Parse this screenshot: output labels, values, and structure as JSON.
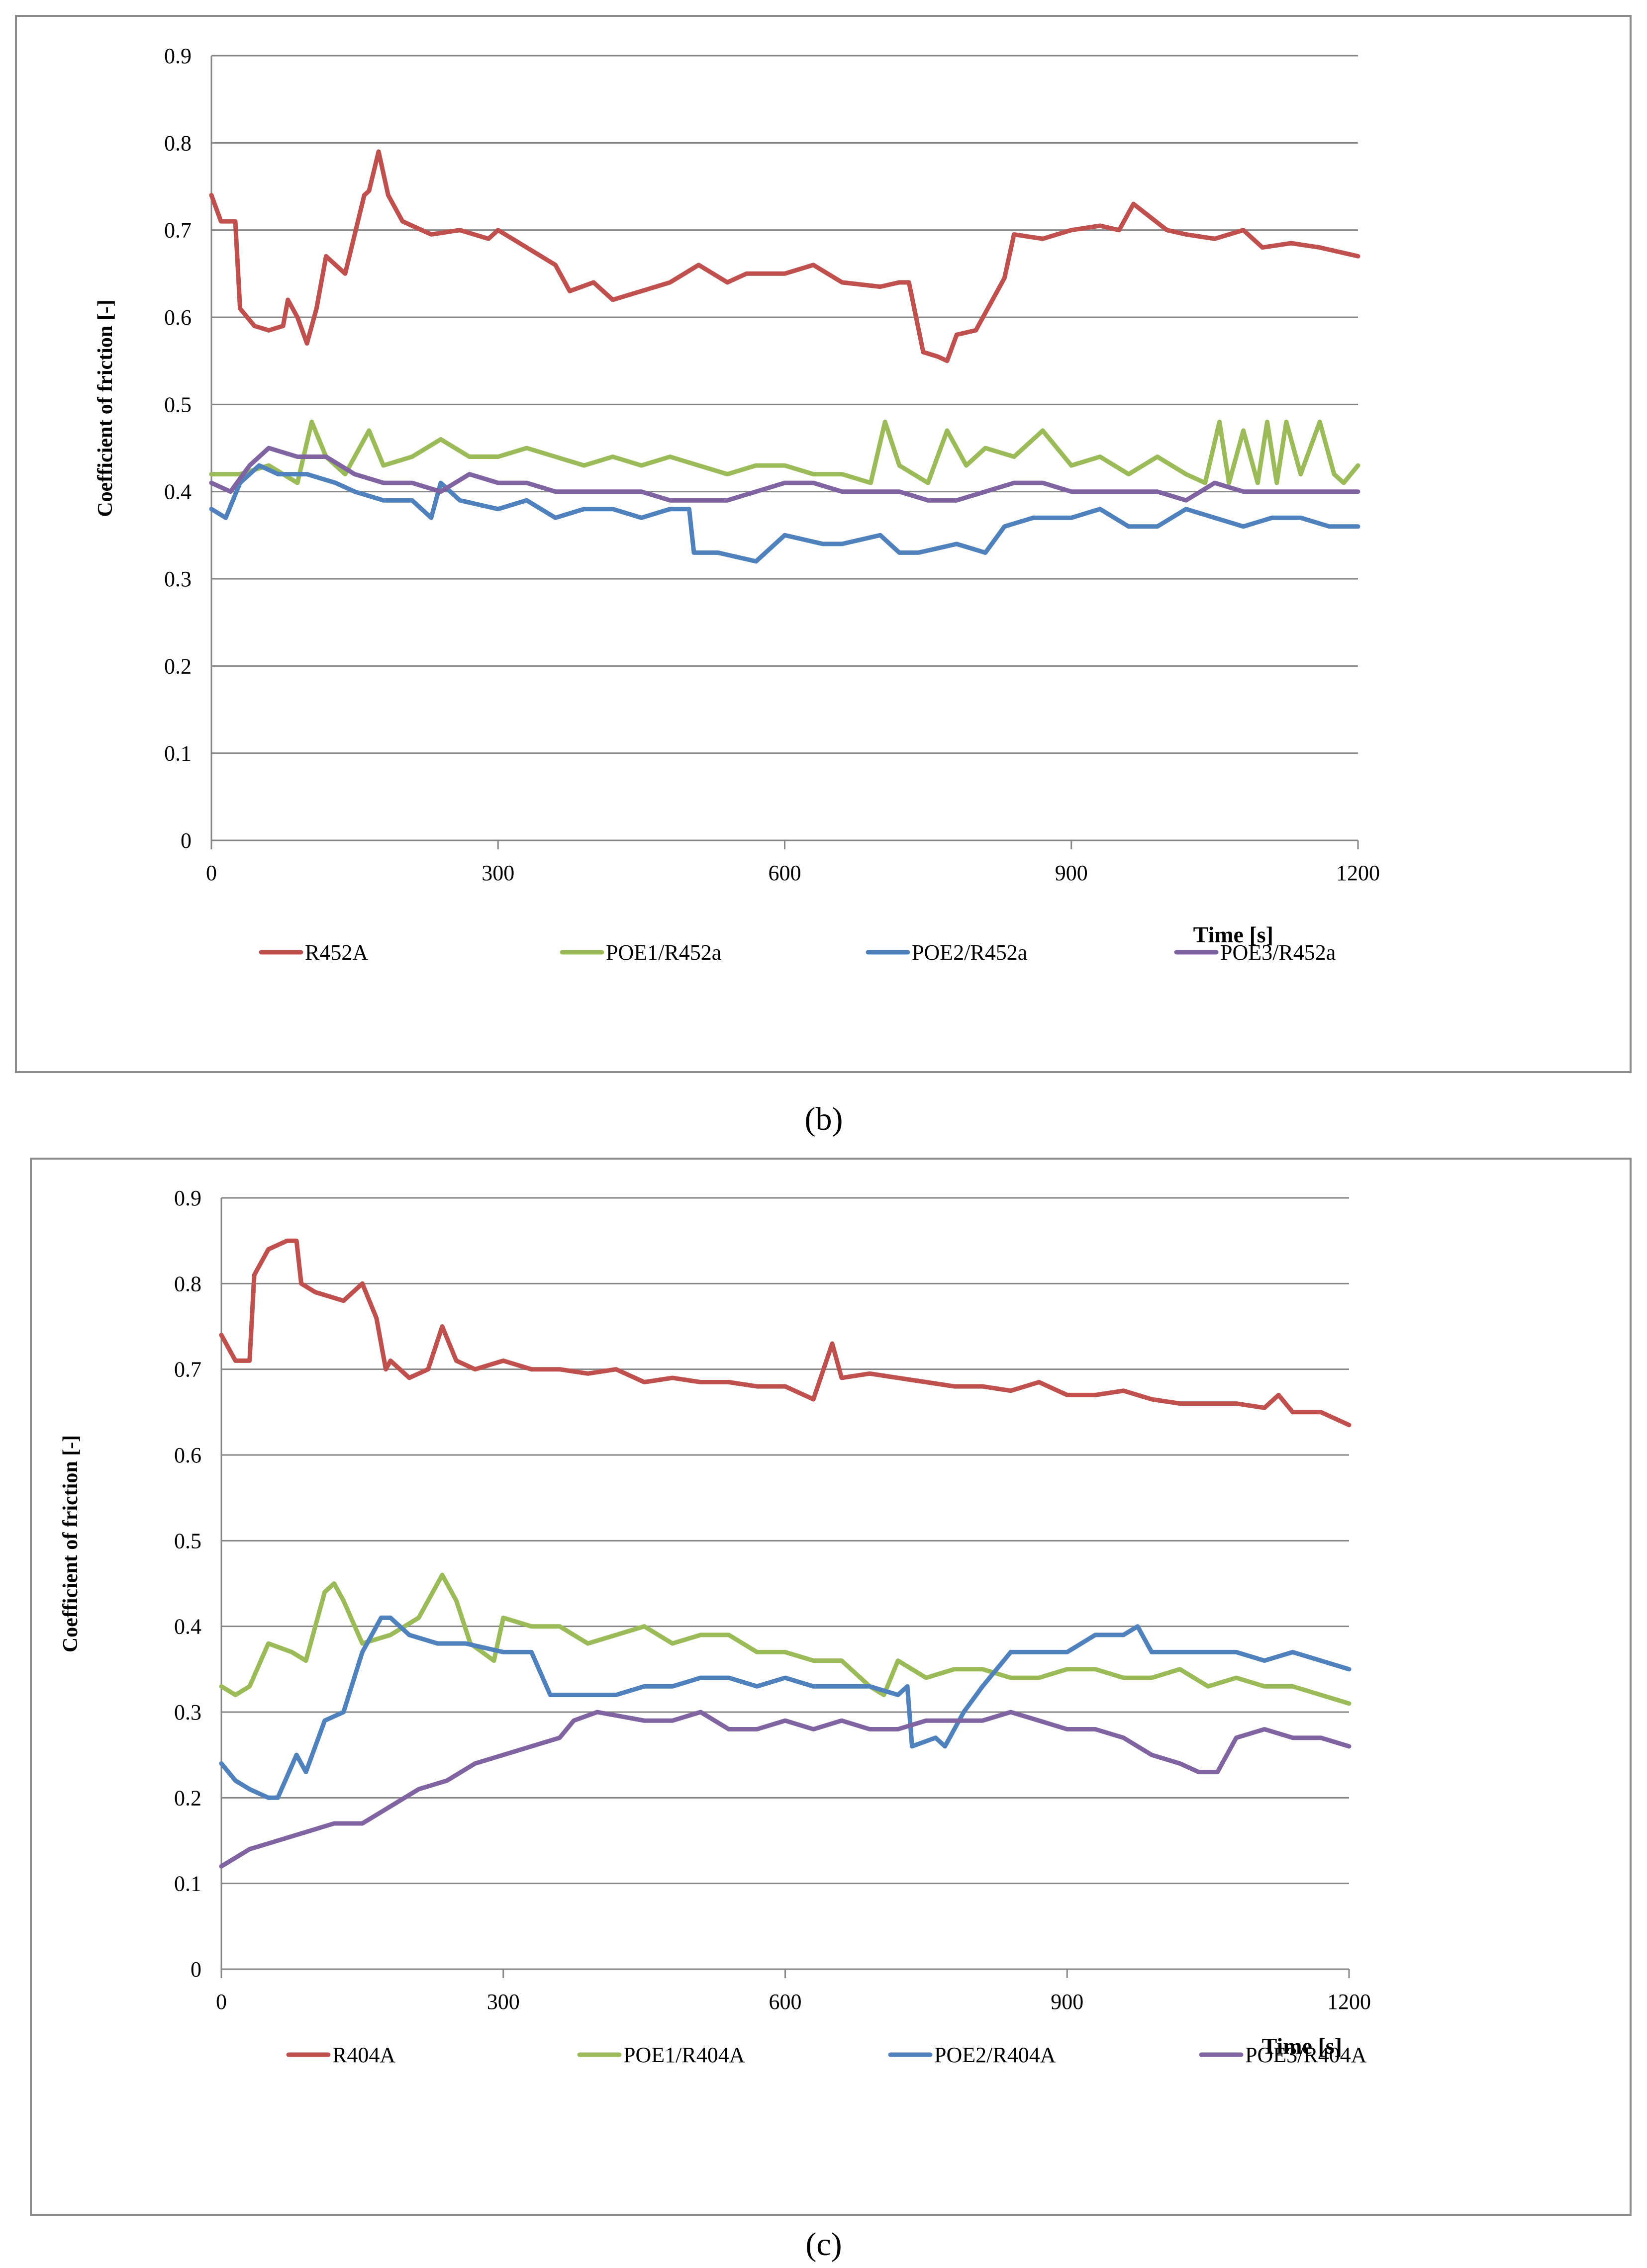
{
  "chart_data": [
    {
      "id": "b",
      "type": "line",
      "caption": "(b)",
      "xlabel": "Time [s]",
      "ylabel": "Coefficient of friction [-]",
      "xlim": [
        0,
        1200
      ],
      "ylim": [
        0,
        0.9
      ],
      "xticks": [
        0,
        300,
        600,
        900,
        1200
      ],
      "yticks": [
        0,
        0.1,
        0.2,
        0.3,
        0.4,
        0.5,
        0.6,
        0.7,
        0.8,
        0.9
      ],
      "grid": true,
      "legend_position": "bottom",
      "series": [
        {
          "name": "R452A",
          "color": "#c0504d",
          "x": [
            0,
            10,
            25,
            30,
            45,
            60,
            75,
            80,
            90,
            100,
            110,
            120,
            140,
            160,
            165,
            175,
            185,
            200,
            230,
            260,
            290,
            300,
            330,
            360,
            375,
            400,
            420,
            450,
            480,
            510,
            540,
            560,
            600,
            630,
            660,
            700,
            720,
            730,
            745,
            760,
            770,
            780,
            800,
            830,
            840,
            870,
            900,
            930,
            950,
            965,
            1000,
            1020,
            1050,
            1080,
            1100,
            1130,
            1160,
            1200
          ],
          "y": [
            0.74,
            0.71,
            0.71,
            0.61,
            0.59,
            0.585,
            0.59,
            0.62,
            0.6,
            0.57,
            0.61,
            0.67,
            0.65,
            0.74,
            0.745,
            0.79,
            0.74,
            0.71,
            0.695,
            0.7,
            0.69,
            0.7,
            0.68,
            0.66,
            0.63,
            0.64,
            0.62,
            0.63,
            0.64,
            0.66,
            0.64,
            0.65,
            0.65,
            0.66,
            0.64,
            0.635,
            0.64,
            0.64,
            0.56,
            0.555,
            0.55,
            0.58,
            0.585,
            0.645,
            0.695,
            0.69,
            0.7,
            0.705,
            0.7,
            0.73,
            0.7,
            0.695,
            0.69,
            0.7,
            0.68,
            0.685,
            0.68,
            0.67
          ]
        },
        {
          "name": "POE1/R452a",
          "color": "#9bbb59",
          "x": [
            0,
            30,
            60,
            90,
            105,
            120,
            140,
            165,
            180,
            210,
            240,
            270,
            300,
            330,
            360,
            390,
            420,
            450,
            480,
            510,
            540,
            570,
            600,
            630,
            660,
            690,
            705,
            720,
            750,
            770,
            790,
            810,
            840,
            870,
            900,
            930,
            960,
            990,
            1020,
            1040,
            1055,
            1065,
            1080,
            1095,
            1105,
            1115,
            1125,
            1140,
            1160,
            1175,
            1185,
            1200
          ],
          "y": [
            0.42,
            0.42,
            0.43,
            0.41,
            0.48,
            0.44,
            0.42,
            0.47,
            0.43,
            0.44,
            0.46,
            0.44,
            0.44,
            0.45,
            0.44,
            0.43,
            0.44,
            0.43,
            0.44,
            0.43,
            0.42,
            0.43,
            0.43,
            0.42,
            0.42,
            0.41,
            0.48,
            0.43,
            0.41,
            0.47,
            0.43,
            0.45,
            0.44,
            0.47,
            0.43,
            0.44,
            0.42,
            0.44,
            0.42,
            0.41,
            0.48,
            0.41,
            0.47,
            0.41,
            0.48,
            0.41,
            0.48,
            0.42,
            0.48,
            0.42,
            0.41,
            0.43
          ]
        },
        {
          "name": "POE2/R452a",
          "color": "#4f81bd",
          "x": [
            0,
            15,
            30,
            50,
            70,
            100,
            130,
            150,
            180,
            210,
            230,
            240,
            260,
            300,
            330,
            360,
            390,
            420,
            450,
            480,
            500,
            505,
            530,
            570,
            600,
            640,
            660,
            700,
            720,
            740,
            780,
            810,
            830,
            860,
            900,
            930,
            960,
            990,
            1020,
            1050,
            1080,
            1110,
            1140,
            1170,
            1200
          ],
          "y": [
            0.38,
            0.37,
            0.41,
            0.43,
            0.42,
            0.42,
            0.41,
            0.4,
            0.39,
            0.39,
            0.37,
            0.41,
            0.39,
            0.38,
            0.39,
            0.37,
            0.38,
            0.38,
            0.37,
            0.38,
            0.38,
            0.33,
            0.33,
            0.32,
            0.35,
            0.34,
            0.34,
            0.35,
            0.33,
            0.33,
            0.34,
            0.33,
            0.36,
            0.37,
            0.37,
            0.38,
            0.36,
            0.36,
            0.38,
            0.37,
            0.36,
            0.37,
            0.37,
            0.36,
            0.36
          ]
        },
        {
          "name": "POE3/R452a",
          "color": "#8064a2",
          "x": [
            0,
            20,
            40,
            60,
            90,
            120,
            150,
            180,
            210,
            240,
            270,
            300,
            330,
            360,
            390,
            420,
            450,
            480,
            510,
            540,
            570,
            600,
            630,
            660,
            690,
            720,
            750,
            780,
            810,
            840,
            870,
            900,
            930,
            960,
            990,
            1020,
            1050,
            1080,
            1110,
            1140,
            1170,
            1200
          ],
          "y": [
            0.41,
            0.4,
            0.43,
            0.45,
            0.44,
            0.44,
            0.42,
            0.41,
            0.41,
            0.4,
            0.42,
            0.41,
            0.41,
            0.4,
            0.4,
            0.4,
            0.4,
            0.39,
            0.39,
            0.39,
            0.4,
            0.41,
            0.41,
            0.4,
            0.4,
            0.4,
            0.39,
            0.39,
            0.4,
            0.41,
            0.41,
            0.4,
            0.4,
            0.4,
            0.4,
            0.39,
            0.41,
            0.4,
            0.4,
            0.4,
            0.4,
            0.4
          ]
        }
      ],
      "legend": [
        "R452A",
        "POE1/R452a",
        "POE2/R452a",
        "POE3/R452a"
      ]
    },
    {
      "id": "c",
      "type": "line",
      "caption": "(c)",
      "xlabel": "Time [s]",
      "ylabel": "Coefficient of friction [-]",
      "xlim": [
        0,
        1200
      ],
      "ylim": [
        0,
        0.9
      ],
      "xticks": [
        0,
        300,
        600,
        900,
        1200
      ],
      "yticks": [
        0,
        0.1,
        0.2,
        0.3,
        0.4,
        0.5,
        0.6,
        0.7,
        0.8,
        0.9
      ],
      "grid": true,
      "legend_position": "bottom",
      "series": [
        {
          "name": "R404A",
          "color": "#c0504d",
          "x": [
            0,
            15,
            30,
            35,
            50,
            70,
            80,
            85,
            100,
            130,
            150,
            165,
            175,
            180,
            200,
            220,
            235,
            250,
            270,
            300,
            330,
            360,
            390,
            420,
            450,
            480,
            510,
            540,
            570,
            600,
            630,
            650,
            660,
            690,
            720,
            750,
            780,
            810,
            840,
            870,
            900,
            930,
            960,
            990,
            1020,
            1050,
            1080,
            1110,
            1125,
            1140,
            1170,
            1200
          ],
          "y": [
            0.74,
            0.71,
            0.71,
            0.81,
            0.84,
            0.85,
            0.85,
            0.8,
            0.79,
            0.78,
            0.8,
            0.76,
            0.7,
            0.71,
            0.69,
            0.7,
            0.75,
            0.71,
            0.7,
            0.71,
            0.7,
            0.7,
            0.695,
            0.7,
            0.685,
            0.69,
            0.685,
            0.685,
            0.68,
            0.68,
            0.665,
            0.73,
            0.69,
            0.695,
            0.69,
            0.685,
            0.68,
            0.68,
            0.675,
            0.685,
            0.67,
            0.67,
            0.675,
            0.665,
            0.66,
            0.66,
            0.66,
            0.655,
            0.67,
            0.65,
            0.65,
            0.635
          ]
        },
        {
          "name": "POE1/R404A",
          "color": "#9bbb59",
          "x": [
            0,
            15,
            30,
            50,
            75,
            90,
            110,
            120,
            130,
            150,
            180,
            210,
            235,
            250,
            265,
            290,
            300,
            330,
            360,
            390,
            420,
            450,
            480,
            510,
            540,
            570,
            600,
            630,
            660,
            690,
            705,
            720,
            750,
            780,
            810,
            840,
            870,
            900,
            930,
            960,
            990,
            1020,
            1050,
            1080,
            1110,
            1140,
            1170,
            1200
          ],
          "y": [
            0.33,
            0.32,
            0.33,
            0.38,
            0.37,
            0.36,
            0.44,
            0.45,
            0.43,
            0.38,
            0.39,
            0.41,
            0.46,
            0.43,
            0.38,
            0.36,
            0.41,
            0.4,
            0.4,
            0.38,
            0.39,
            0.4,
            0.38,
            0.39,
            0.39,
            0.37,
            0.37,
            0.36,
            0.36,
            0.33,
            0.32,
            0.36,
            0.34,
            0.35,
            0.35,
            0.34,
            0.34,
            0.35,
            0.35,
            0.34,
            0.34,
            0.35,
            0.33,
            0.34,
            0.33,
            0.33,
            0.32,
            0.31
          ]
        },
        {
          "name": "POE2/R404A",
          "color": "#4f81bd",
          "x": [
            0,
            15,
            30,
            50,
            60,
            80,
            90,
            110,
            130,
            150,
            170,
            180,
            200,
            230,
            260,
            300,
            330,
            350,
            380,
            420,
            450,
            480,
            510,
            540,
            570,
            600,
            630,
            660,
            690,
            720,
            730,
            735,
            760,
            770,
            790,
            810,
            840,
            870,
            900,
            930,
            960,
            975,
            990,
            1020,
            1050,
            1080,
            1110,
            1140,
            1170,
            1200
          ],
          "y": [
            0.24,
            0.22,
            0.21,
            0.2,
            0.2,
            0.25,
            0.23,
            0.29,
            0.3,
            0.37,
            0.41,
            0.41,
            0.39,
            0.38,
            0.38,
            0.37,
            0.37,
            0.32,
            0.32,
            0.32,
            0.33,
            0.33,
            0.34,
            0.34,
            0.33,
            0.34,
            0.33,
            0.33,
            0.33,
            0.32,
            0.33,
            0.26,
            0.27,
            0.26,
            0.3,
            0.33,
            0.37,
            0.37,
            0.37,
            0.39,
            0.39,
            0.4,
            0.37,
            0.37,
            0.37,
            0.37,
            0.36,
            0.37,
            0.36,
            0.35
          ]
        },
        {
          "name": "POE3/R404A",
          "color": "#8064a2",
          "x": [
            0,
            15,
            30,
            60,
            90,
            120,
            150,
            180,
            210,
            240,
            270,
            300,
            330,
            360,
            375,
            400,
            450,
            480,
            510,
            540,
            570,
            600,
            630,
            660,
            690,
            720,
            750,
            780,
            810,
            840,
            870,
            900,
            930,
            960,
            990,
            1020,
            1040,
            1060,
            1080,
            1110,
            1140,
            1170,
            1200
          ],
          "y": [
            0.12,
            0.13,
            0.14,
            0.15,
            0.16,
            0.17,
            0.17,
            0.19,
            0.21,
            0.22,
            0.24,
            0.25,
            0.26,
            0.27,
            0.29,
            0.3,
            0.29,
            0.29,
            0.3,
            0.28,
            0.28,
            0.29,
            0.28,
            0.29,
            0.28,
            0.28,
            0.29,
            0.29,
            0.29,
            0.3,
            0.29,
            0.28,
            0.28,
            0.27,
            0.25,
            0.24,
            0.23,
            0.23,
            0.27,
            0.28,
            0.27,
            0.27,
            0.26
          ]
        }
      ],
      "legend": [
        "R404A",
        "POE1/R404A",
        "POE2/R404A",
        "POE3/R404A"
      ]
    }
  ]
}
